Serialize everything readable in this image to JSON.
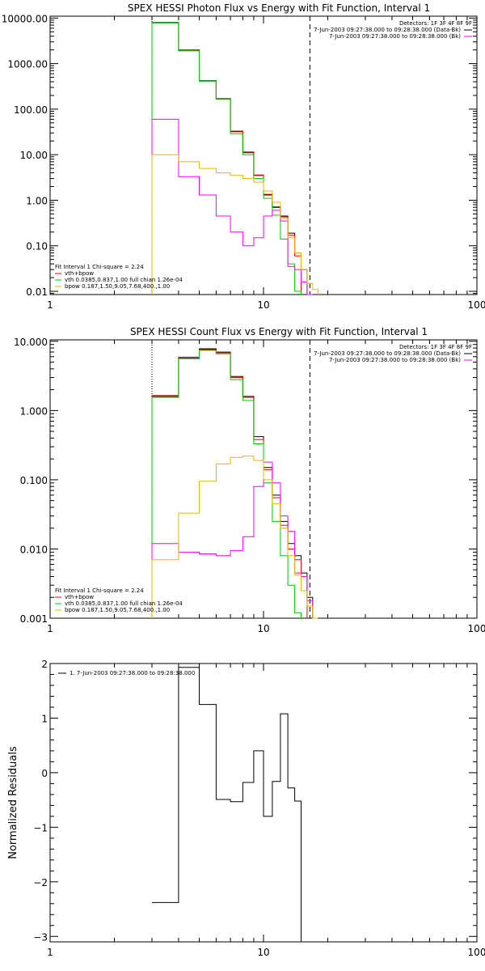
{
  "chart_data": [
    {
      "type": "line",
      "step": true,
      "title": "SPEX HESSI Photon Flux vs Energy with Fit Function, Interval 1",
      "xlabel": "",
      "ylabel": "",
      "xscale": "log",
      "yscale": "log",
      "xlim": [
        1,
        100
      ],
      "ylim": [
        0.0085,
        11000
      ],
      "xticks": [
        "1",
        "10",
        "100"
      ],
      "yticks": [
        {
          "value": 10000,
          "label": "10000.00"
        },
        {
          "value": 1000,
          "label": "1000.00"
        },
        {
          "value": 100,
          "label": "100.00"
        },
        {
          "value": 10,
          "label": "10.00"
        },
        {
          "value": 1,
          "label": "1.00"
        },
        {
          "value": 0.1,
          "label": "0.10"
        },
        {
          "value": 0.01,
          "label": "0.01"
        }
      ],
      "vlines": [
        {
          "x": 3.0,
          "style": "dotted"
        },
        {
          "x": 16.5,
          "style": "dashed"
        }
      ],
      "edges": [
        3.0,
        4.0,
        5.0,
        6.0,
        7.0,
        8.0,
        9.0,
        10.0,
        11.0,
        12.0,
        13.0,
        14.0,
        15.0,
        16.0,
        17.0,
        18.0
      ],
      "series": [
        {
          "color": "#000000",
          "values": [
            8000,
            2000,
            420,
            170,
            32,
            11,
            3.5,
            1.3,
            0.7,
            0.45,
            0.19,
            0.07,
            0.03,
            null,
            null
          ]
        },
        {
          "color": "#ff0000",
          "values": [
            8000,
            2000,
            420,
            170,
            33,
            11.5,
            3.6,
            1.35,
            0.72,
            0.43,
            0.17,
            0.06,
            null,
            null,
            null
          ]
        },
        {
          "color": "#00cc00",
          "values": [
            7800,
            1900,
            410,
            165,
            29,
            10,
            3.0,
            1.1,
            0.47,
            0.14,
            0.04,
            0.01,
            null,
            null,
            null
          ]
        },
        {
          "color": "#ff00ff",
          "values": [
            60,
            3.3,
            1.3,
            0.45,
            0.2,
            0.1,
            0.15,
            0.45,
            0.6,
            0.35,
            0.035,
            0.03,
            0.016,
            0.008,
            null
          ]
        },
        {
          "color": "#e6b800",
          "values": [
            10,
            7,
            5,
            4,
            3.5,
            3.0,
            2.5,
            1.6,
            0.9,
            0.4,
            0.15,
            0.07,
            0.03,
            0.015,
            0.011
          ]
        }
      ],
      "legend_topright": {
        "detectors": "Detectors: 1F 3F 4F 8F 9F",
        "entries": [
          {
            "text": "7-Jun-2003 09:27:38.000 to 09:28:38.000 (Data-Bk)",
            "color": "#000000"
          },
          {
            "text": "7-Jun-2003 09:27:38.000 to 09:28:38.000 (Bk)",
            "color": "#ff00ff"
          }
        ]
      },
      "legend_bottomleft": {
        "header": "Fit Interval 1   Chi-square = 2.24",
        "entries": [
          {
            "text": "vth+bpow",
            "color": "#ff0000"
          },
          {
            "text": "vth 0.0385,0.837,1.00  full chian 1.26e-04",
            "color": "#00cc00"
          },
          {
            "text": "bpow 0.187,1.50,9.05,7.68,400.,1.00",
            "color": "#e6b800"
          }
        ]
      }
    },
    {
      "type": "line",
      "step": true,
      "title": "SPEX HESSI Count Flux vs Energy with Fit Function, Interval 1",
      "xlabel": "",
      "ylabel": "",
      "xscale": "log",
      "yscale": "log",
      "xlim": [
        1,
        100
      ],
      "ylim": [
        0.001,
        10.5
      ],
      "xticks": [
        "1",
        "10",
        "100"
      ],
      "yticks": [
        {
          "value": 10,
          "label": "10.000"
        },
        {
          "value": 1,
          "label": "1.000"
        },
        {
          "value": 0.1,
          "label": "0.100"
        },
        {
          "value": 0.01,
          "label": "0.010"
        },
        {
          "value": 0.001,
          "label": "0.001"
        }
      ],
      "vlines": [
        {
          "x": 3.0,
          "style": "dotted"
        },
        {
          "x": 16.5,
          "style": "dashed"
        }
      ],
      "edges": [
        3.0,
        4.0,
        5.0,
        6.0,
        7.0,
        8.0,
        9.0,
        10.0,
        11.0,
        12.0,
        13.0,
        14.0,
        15.0,
        16.0,
        17.0,
        18.0
      ],
      "series": [
        {
          "color": "#000000",
          "values": [
            1.6,
            5.8,
            7.8,
            7.0,
            3.1,
            1.6,
            0.42,
            0.15,
            0.06,
            0.025,
            0.012,
            0.008,
            0.0045,
            0.002,
            null
          ]
        },
        {
          "color": "#ff0000",
          "values": [
            1.65,
            5.9,
            7.6,
            6.8,
            3.0,
            1.55,
            0.38,
            0.14,
            0.055,
            0.022,
            0.01,
            0.007,
            0.004,
            null,
            null
          ]
        },
        {
          "color": "#00cc00",
          "values": [
            1.55,
            5.6,
            7.4,
            6.6,
            2.8,
            1.4,
            0.33,
            0.09,
            0.025,
            0.008,
            0.003,
            0.0012,
            null,
            null,
            null
          ]
        },
        {
          "color": "#ff00ff",
          "values": [
            0.012,
            0.009,
            0.0085,
            0.008,
            0.0095,
            0.015,
            0.08,
            0.18,
            0.09,
            0.03,
            0.018,
            0.0045,
            0.004,
            0.0018,
            null
          ]
        },
        {
          "color": "#e6b800",
          "values": [
            0.007,
            0.033,
            0.095,
            0.17,
            0.21,
            0.22,
            0.19,
            0.1,
            0.045,
            0.02,
            0.008,
            0.0042,
            0.0025,
            0.0015,
            0.001
          ]
        }
      ],
      "legend_topright": {
        "detectors": "Detectors: 1F 3F 4F 8F 9F",
        "entries": [
          {
            "text": "7-Jun-2003 09:27:38.000 to 09:28:38.000 (Data-Bk)",
            "color": "#000000"
          },
          {
            "text": "7-Jun-2003 09:27:38.000 to 09:28:38.000 (Bk)",
            "color": "#ff00ff"
          }
        ]
      },
      "legend_bottomleft": {
        "header": "Fit Interval 1   Chi-square = 2.24",
        "entries": [
          {
            "text": "vth+bpow",
            "color": "#ff0000"
          },
          {
            "text": "vth 0.0385,0.837,1.00  full chian 1.26e-04",
            "color": "#00cc00"
          },
          {
            "text": "bpow 0.187,1.50,9.05,7.68,400.,1.00",
            "color": "#e6b800"
          }
        ]
      }
    },
    {
      "type": "line",
      "step": true,
      "title": "",
      "xlabel": "",
      "ylabel": "Normalized Residuals",
      "xscale": "log",
      "yscale": "linear",
      "xlim": [
        1,
        100
      ],
      "ylim": [
        -3.1,
        2.0
      ],
      "xticks": [
        "1",
        "10",
        "100"
      ],
      "yticks": [
        {
          "value": 2,
          "label": "2"
        },
        {
          "value": 1,
          "label": "1"
        },
        {
          "value": 0,
          "label": "0"
        },
        {
          "value": -1,
          "label": "−1"
        },
        {
          "value": -2,
          "label": "−2"
        },
        {
          "value": -3,
          "label": "−3"
        }
      ],
      "edges": [
        3.0,
        4.0,
        5.0,
        6.0,
        7.0,
        8.0,
        9.0,
        10.0,
        11.0,
        12.0,
        13.0,
        14.0,
        15.0,
        16.0,
        17.0
      ],
      "series": [
        {
          "color": "#000000",
          "values": [
            -2.38,
            1.93,
            1.25,
            -0.49,
            -0.53,
            -0.18,
            0.4,
            -0.8,
            -0.16,
            1.08,
            -0.28,
            -0.52,
            -3.1,
            -3.1
          ]
        }
      ],
      "legend_topleft": {
        "entries": [
          {
            "text": "1.  7-Jun-2003 09:27:38.000 to 09:28:38.000",
            "color": "#000000"
          }
        ]
      }
    }
  ]
}
